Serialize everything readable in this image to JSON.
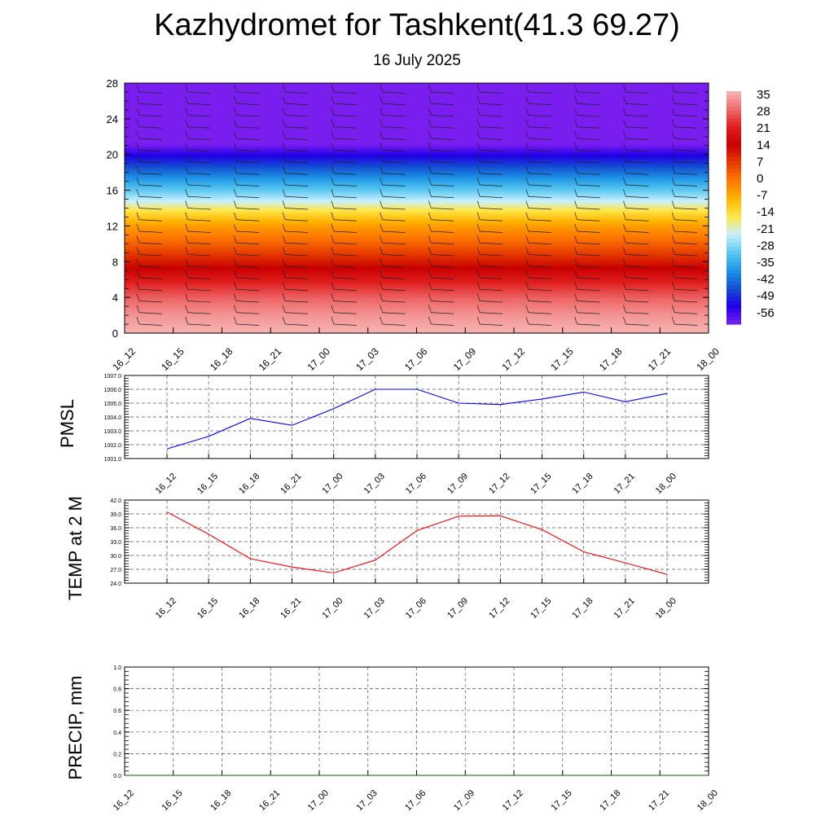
{
  "header": {
    "title": "Kazhydromet for Tashkent(41.3 69.27)",
    "subtitle": "16 July 2025"
  },
  "chart_data": [
    {
      "type": "heatmap",
      "id": "temperature-cross-section",
      "x_ticks": [
        "16_12",
        "16_15",
        "16_18",
        "16_21",
        "17_00",
        "17_03",
        "17_06",
        "17_09",
        "17_12",
        "17_15",
        "17_18",
        "17_21",
        "18_00"
      ],
      "y_ticks": [
        0,
        4,
        8,
        12,
        16,
        20,
        24,
        28
      ],
      "ylim": [
        0,
        28
      ],
      "colorbar_labels": [
        35,
        28,
        21,
        14,
        7,
        0,
        -7,
        -14,
        -21,
        -28,
        -35,
        -42,
        -49,
        -56
      ],
      "colorbar_colors": [
        "#f7b4b4",
        "#ef6c6c",
        "#e01e1e",
        "#c80000",
        "#e63c00",
        "#ff7a00",
        "#ffb400",
        "#ffe84a",
        "#c8f0ff",
        "#5ac8f0",
        "#1e96e6",
        "#1450d2",
        "#1e00e6",
        "#7a1ef0"
      ],
      "profile": [
        {
          "z": 0,
          "v": 35
        },
        {
          "z": 2,
          "v": 32
        },
        {
          "z": 4,
          "v": 27
        },
        {
          "z": 6,
          "v": 20
        },
        {
          "z": 8,
          "v": 11
        },
        {
          "z": 10,
          "v": 3
        },
        {
          "z": 12,
          "v": -4
        },
        {
          "z": 13.5,
          "v": -12
        },
        {
          "z": 15,
          "v": -22
        },
        {
          "z": 17,
          "v": -33
        },
        {
          "z": 19,
          "v": -44
        },
        {
          "z": 21,
          "v": -55
        },
        {
          "z": 22.5,
          "v": -62
        },
        {
          "z": 28,
          "v": -62
        }
      ],
      "grid": true
    },
    {
      "type": "line",
      "id": "pmsl",
      "ylabel": "PMSL",
      "categories": [
        "16_12",
        "16_15",
        "16_18",
        "16_21",
        "17_00",
        "17_03",
        "17_06",
        "17_09",
        "17_12",
        "17_15",
        "17_18",
        "17_21",
        "18_00"
      ],
      "y_ticks": [
        "1001.0",
        "1002.0",
        "1003.0",
        "1004.0",
        "1005.0",
        "1006.0",
        "1007.0"
      ],
      "ylim": [
        1001,
        1007
      ],
      "series": [
        {
          "values": [
            1001.7,
            1002.6,
            1003.9,
            1003.4,
            1004.6,
            1006.0,
            1006.0,
            1005.0,
            1004.9,
            1005.3,
            1005.8,
            1005.1,
            1005.7
          ],
          "color": "#0000ff"
        }
      ],
      "grid": true
    },
    {
      "type": "line",
      "id": "temp-2m",
      "ylabel": "TEMP at 2 M",
      "categories": [
        "16_12",
        "16_15",
        "16_18",
        "16_21",
        "17_00",
        "17_03",
        "17_06",
        "17_09",
        "17_12",
        "17_15",
        "17_18",
        "17_21",
        "18_00"
      ],
      "y_ticks": [
        "24.0",
        "27.0",
        "30.0",
        "33.0",
        "36.0",
        "39.0",
        "42.0"
      ],
      "ylim": [
        24,
        42
      ],
      "series": [
        {
          "values": [
            39.4,
            34.6,
            29.3,
            27.5,
            26.2,
            29.0,
            35.4,
            38.5,
            38.6,
            35.6,
            30.8,
            28.4,
            25.9
          ],
          "color": "#ff0000"
        }
      ],
      "grid": true
    },
    {
      "type": "line",
      "id": "precip",
      "ylabel": "PRECIP, mm",
      "x_ticks": [
        "16_12",
        "16_15",
        "16_18",
        "16_21",
        "17_00",
        "17_03",
        "17_06",
        "17_09",
        "17_12",
        "17_15",
        "17_18",
        "17_21",
        "18_00"
      ],
      "y_ticks": [
        "0.0",
        "0.2",
        "0.4",
        "0.6",
        "0.8",
        "1.0"
      ],
      "ylim": [
        0,
        1
      ],
      "series": [
        {
          "values": [
            0,
            0,
            0,
            0,
            0,
            0,
            0,
            0,
            0,
            0,
            0,
            0,
            0
          ],
          "color": "#006400"
        }
      ],
      "grid": true
    }
  ]
}
